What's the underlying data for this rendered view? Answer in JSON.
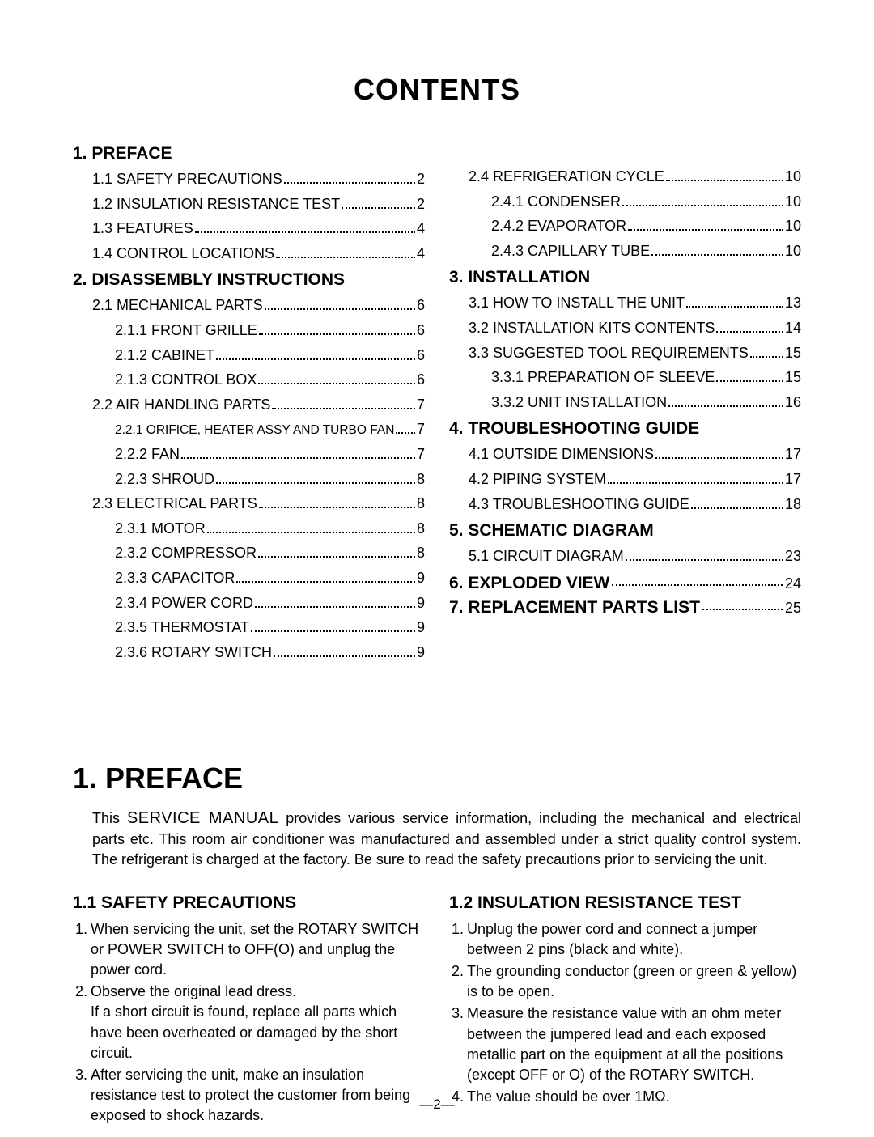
{
  "title": "CONTENTS",
  "toc_left": {
    "sections": [
      {
        "heading": "1. PREFACE",
        "entries": [
          {
            "label": "1.1 SAFETY PRECAUTIONS",
            "page": "2",
            "indent": 1
          },
          {
            "label": "1.2 INSULATION RESISTANCE TEST",
            "page": "2",
            "indent": 1
          },
          {
            "label": "1.3 FEATURES",
            "page": "4",
            "indent": 1
          },
          {
            "label": "1.4 CONTROL LOCATIONS",
            "page": "4",
            "indent": 1
          }
        ]
      },
      {
        "heading": "2. DISASSEMBLY INSTRUCTIONS",
        "entries": [
          {
            "label": "2.1 MECHANICAL PARTS",
            "page": "6",
            "indent": 1
          },
          {
            "label": "2.1.1 FRONT GRILLE",
            "page": "6",
            "indent": 2
          },
          {
            "label": "2.1.2 CABINET",
            "page": "6",
            "indent": 2
          },
          {
            "label": "2.1.3 CONTROL BOX",
            "page": "6",
            "indent": 2
          },
          {
            "label": "2.2 AIR HANDLING PARTS",
            "page": "7",
            "indent": 1
          },
          {
            "label": "2.2.1 ORIFICE, HEATER ASSY AND TURBO FAN",
            "page": "7",
            "indent": 2,
            "small": true
          },
          {
            "label": "2.2.2 FAN",
            "page": "7",
            "indent": 2
          },
          {
            "label": "2.2.3 SHROUD",
            "page": "8",
            "indent": 2
          },
          {
            "label": "2.3 ELECTRICAL PARTS",
            "page": "8",
            "indent": 1
          },
          {
            "label": "2.3.1 MOTOR",
            "page": "8",
            "indent": 2
          },
          {
            "label": "2.3.2 COMPRESSOR",
            "page": "8",
            "indent": 2
          },
          {
            "label": "2.3.3 CAPACITOR",
            "page": "9",
            "indent": 2
          },
          {
            "label": "2.3.4 POWER CORD",
            "page": "9",
            "indent": 2
          },
          {
            "label": "2.3.5 THERMOSTAT",
            "page": "9",
            "indent": 2
          },
          {
            "label": "2.3.6 ROTARY SWITCH",
            "page": "9",
            "indent": 2
          }
        ]
      }
    ]
  },
  "toc_right": {
    "lead_entries": [
      {
        "label": "2.4 REFRIGERATION CYCLE",
        "page": "10",
        "indent": 1
      },
      {
        "label": "2.4.1 CONDENSER",
        "page": "10",
        "indent": 2
      },
      {
        "label": "2.4.2 EVAPORATOR",
        "page": "10",
        "indent": 2
      },
      {
        "label": "2.4.3 CAPILLARY TUBE",
        "page": "10",
        "indent": 2
      }
    ],
    "sections": [
      {
        "heading": "3. INSTALLATION",
        "entries": [
          {
            "label": "3.1 HOW TO INSTALL THE UNIT",
            "page": "13",
            "indent": 1
          },
          {
            "label": "3.2 INSTALLATION KITS CONTENTS",
            "page": "14",
            "indent": 1
          },
          {
            "label": "3.3 SUGGESTED TOOL REQUIREMENTS",
            "page": "15",
            "indent": 1
          },
          {
            "label": "3.3.1 PREPARATION OF SLEEVE",
            "page": "15",
            "indent": 2
          },
          {
            "label": "3.3.2 UNIT INSTALLATION",
            "page": "16",
            "indent": 2
          }
        ]
      },
      {
        "heading": "4. TROUBLESHOOTING GUIDE",
        "entries": [
          {
            "label": "4.1 OUTSIDE DIMENSIONS",
            "page": "17",
            "indent": 1
          },
          {
            "label": "4.2 PIPING SYSTEM",
            "page": "17",
            "indent": 1
          },
          {
            "label": "4.3 TROUBLESHOOTING GUIDE",
            "page": "18",
            "indent": 1
          }
        ]
      },
      {
        "heading": "5. SCHEMATIC DIAGRAM",
        "entries": [
          {
            "label": "5.1 CIRCUIT DIAGRAM",
            "page": "23",
            "indent": 1
          }
        ]
      },
      {
        "heading": "6. EXPLODED VIEW",
        "page": "24",
        "inline": true
      },
      {
        "heading": "7. REPLACEMENT PARTS LIST",
        "page": "25",
        "inline": true
      }
    ]
  },
  "preface": {
    "heading": "1. PREFACE",
    "body_pre": "This ",
    "body_svc": "SERVICE MANUAL",
    "body_post": " provides various service information, including the mechanical and electrical parts etc. This room air conditioner was manufactured and assembled under a strict quality control system. The refrigerant is charged at the factory. Be sure to read the safety precautions prior to servicing the unit."
  },
  "safety": {
    "heading": "1.1 SAFETY PRECAUTIONS",
    "items": [
      "When servicing the unit, set the ROTARY SWITCH or POWER SWITCH to OFF(O) and unplug the power cord.",
      "Observe the original lead dress.\nIf a short circuit is found, replace all parts which have been overheated or damaged by the short circuit.",
      "After servicing the unit, make an insulation resistance test to protect the customer from being exposed to shock hazards."
    ]
  },
  "insulation": {
    "heading": "1.2 INSULATION RESISTANCE TEST",
    "items": [
      "Unplug the power cord and connect a jumper between 2 pins (black and white).",
      "The grounding conductor (green or green & yellow) is to be open.",
      "Measure the resistance value with an ohm meter between the jumpered lead and each exposed metallic part on the equipment at all the positions (except OFF or O) of the ROTARY SWITCH.",
      "The value should be over 1MΩ."
    ]
  },
  "footer": "—2—"
}
